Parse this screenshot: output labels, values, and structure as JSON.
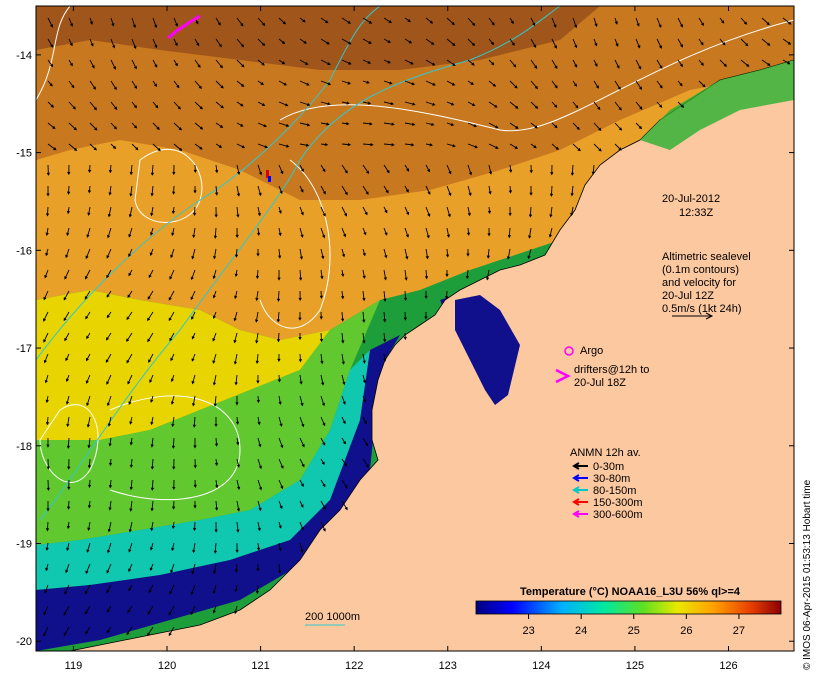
{
  "title": {
    "date": "20-Jul-2012",
    "time": "12:33Z"
  },
  "altimetry": {
    "lines": [
      "Altimetric sealevel",
      "(0.1m contours)",
      "and velocity for",
      "20-Jul 12Z",
      "0.5m/s (1kt 24h)"
    ]
  },
  "argo": {
    "label": "Argo"
  },
  "drifters": {
    "line1": "drifters@12h to",
    "line2": "20-Jul 18Z"
  },
  "anmn": {
    "title": "ANMN 12h av.",
    "items": [
      {
        "label": "0-30m",
        "color": "#000000"
      },
      {
        "label": "30-80m",
        "color": "#0000ff"
      },
      {
        "label": "80-150m",
        "color": "#00c8c8"
      },
      {
        "label": "150-300m",
        "color": "#ff0000"
      },
      {
        "label": "300-600m",
        "color": "#ff00ff"
      }
    ]
  },
  "isobath": {
    "label": "200  1000m"
  },
  "colorbar": {
    "title": "Temperature (°C) NOAA16_L3U 56% ql>=4",
    "min": 22,
    "max": 27.8,
    "ticks": [
      23,
      24,
      25,
      26,
      27
    ]
  },
  "axes": {
    "x_ticks": [
      119,
      120,
      121,
      122,
      123,
      124,
      125,
      126
    ],
    "y_ticks": [
      -14,
      -15,
      -16,
      -17,
      -18,
      -19,
      -20
    ],
    "lon_range": [
      118.6,
      126.7
    ],
    "lat_range": [
      -13.5,
      -20.1
    ]
  },
  "credit": "© IMOS 06-Apr-2015 01:53:13 Hobart time",
  "colors": {
    "land": "#fcc8a0",
    "warm": "#c8781e",
    "cool": "#0a0a78"
  }
}
